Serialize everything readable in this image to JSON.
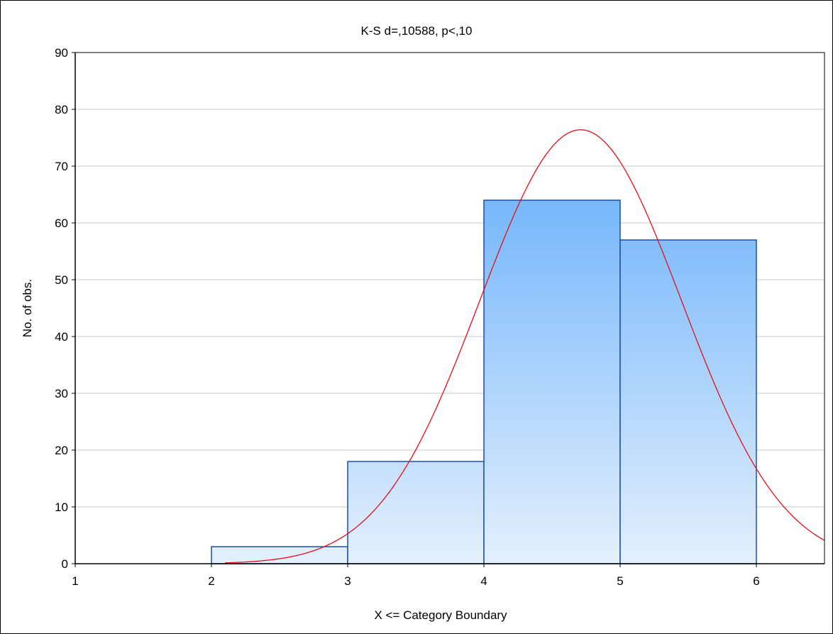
{
  "chart_data": {
    "type": "bar",
    "title": "K-S d=,10588, p<,10",
    "xlabel": "X <= Category Boundary",
    "ylabel": "No. of obs.",
    "xlim": [
      1,
      6.5
    ],
    "ylim": [
      0,
      90
    ],
    "x_ticks": [
      1,
      2,
      3,
      4,
      5,
      6
    ],
    "y_ticks": [
      0,
      10,
      20,
      30,
      40,
      50,
      60,
      70,
      80,
      90
    ],
    "grid": true,
    "bins": [
      {
        "from": 2,
        "to": 3,
        "value": 3
      },
      {
        "from": 3,
        "to": 4,
        "value": 18
      },
      {
        "from": 4,
        "to": 5,
        "value": 64
      },
      {
        "from": 5,
        "to": 6,
        "value": 57
      }
    ],
    "fitted_curve": {
      "type": "normal",
      "mean": 4.71,
      "sd": 0.74,
      "peak": 76.4,
      "x_start": 2.1
    },
    "colors": {
      "bar_top": "#4aa0fa",
      "bar_bottom": "#e4f0fd",
      "bar_border": "#1a4fb0",
      "curve": "#e0101a",
      "grid": "#c8c8c8"
    }
  }
}
